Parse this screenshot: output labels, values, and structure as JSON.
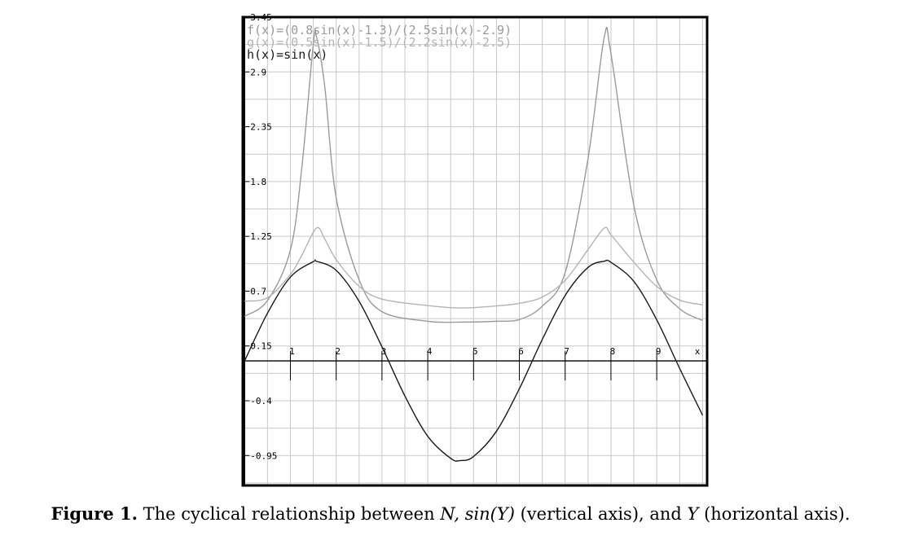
{
  "chart_data": {
    "type": "line",
    "title": "",
    "xlabel": "x",
    "ylabel": "",
    "xlim": [
      -0.04,
      10.1
    ],
    "ylim": [
      -1.25,
      3.45
    ],
    "x_ticks": [
      "1",
      "2",
      "3",
      "4",
      "5",
      "6",
      "7",
      "8",
      "9"
    ],
    "y_ticks": [
      "3.45",
      "2.9",
      "2.35",
      "1.8",
      "1.25",
      "0.7",
      "0.15",
      "-0.4",
      "-0.95"
    ],
    "grid": true,
    "legend_position": "top-left",
    "series": [
      {
        "name": "f(x)=(0.8sin(x)-1.3)/(2.5sin(x)-2.9)",
        "color": "#9a9a9a",
        "points": [
          [
            0,
            0.448
          ],
          [
            0.5,
            0.606
          ],
          [
            1,
            1.113
          ],
          [
            1.25,
            1.94
          ],
          [
            1.5,
            3.179
          ],
          [
            1.571,
            3.25
          ],
          [
            1.75,
            2.755
          ],
          [
            2,
            1.639
          ],
          [
            2.5,
            0.815
          ],
          [
            3,
            0.494
          ],
          [
            4,
            0.398
          ],
          [
            4.712,
            0.389
          ],
          [
            5.5,
            0.398
          ],
          [
            6,
            0.415
          ],
          [
            6.5,
            0.549
          ],
          [
            7,
            0.887
          ],
          [
            7.5,
            2.032
          ],
          [
            7.854,
            3.25
          ],
          [
            8,
            3.082
          ],
          [
            8.5,
            1.561
          ],
          [
            9,
            0.813
          ],
          [
            9.5,
            0.524
          ],
          [
            10,
            0.405
          ]
        ]
      },
      {
        "name": "g(x)=(0.5sin(x)-1.5)/(2.2sin(x)-2.5)",
        "color": "#b4b4b4",
        "points": [
          [
            0,
            0.6
          ],
          [
            0.5,
            0.634
          ],
          [
            1,
            0.868
          ],
          [
            1.25,
            1.06
          ],
          [
            1.571,
            1.333
          ],
          [
            1.75,
            1.224
          ],
          [
            2,
            1.017
          ],
          [
            2.5,
            0.749
          ],
          [
            3,
            0.62
          ],
          [
            4,
            0.555
          ],
          [
            4.712,
            0.531
          ],
          [
            5.5,
            0.552
          ],
          [
            6,
            0.577
          ],
          [
            6.5,
            0.64
          ],
          [
            7,
            0.808
          ],
          [
            7.5,
            1.118
          ],
          [
            7.854,
            1.333
          ],
          [
            8,
            1.266
          ],
          [
            8.5,
            0.991
          ],
          [
            9,
            0.747
          ],
          [
            9.5,
            0.61
          ],
          [
            10,
            0.562
          ]
        ]
      },
      {
        "name": "h(x)=sin(x)",
        "color": "#1a1a1a",
        "points": [
          [
            0,
            0
          ],
          [
            0.5,
            0.479
          ],
          [
            1,
            0.841
          ],
          [
            1.5,
            0.997
          ],
          [
            1.571,
            1
          ],
          [
            2,
            0.909
          ],
          [
            2.5,
            0.598
          ],
          [
            3,
            0.141
          ],
          [
            3.5,
            -0.351
          ],
          [
            4,
            -0.757
          ],
          [
            4.5,
            -0.978
          ],
          [
            4.712,
            -1
          ],
          [
            5,
            -0.959
          ],
          [
            5.5,
            -0.706
          ],
          [
            6,
            -0.279
          ],
          [
            6.5,
            0.215
          ],
          [
            7,
            0.657
          ],
          [
            7.5,
            0.938
          ],
          [
            7.854,
            1
          ],
          [
            8,
            0.989
          ],
          [
            8.5,
            0.798
          ],
          [
            9,
            0.412
          ],
          [
            9.5,
            -0.075
          ],
          [
            10,
            -0.544
          ]
        ]
      }
    ]
  },
  "caption": {
    "label": "Figure 1.",
    "text_1": " The cyclical relationship between ",
    "var_1": "N, sin(Y)",
    "text_2": " (vertical axis), and ",
    "var_2": "Y",
    "text_3": " (horizontal axis)."
  }
}
